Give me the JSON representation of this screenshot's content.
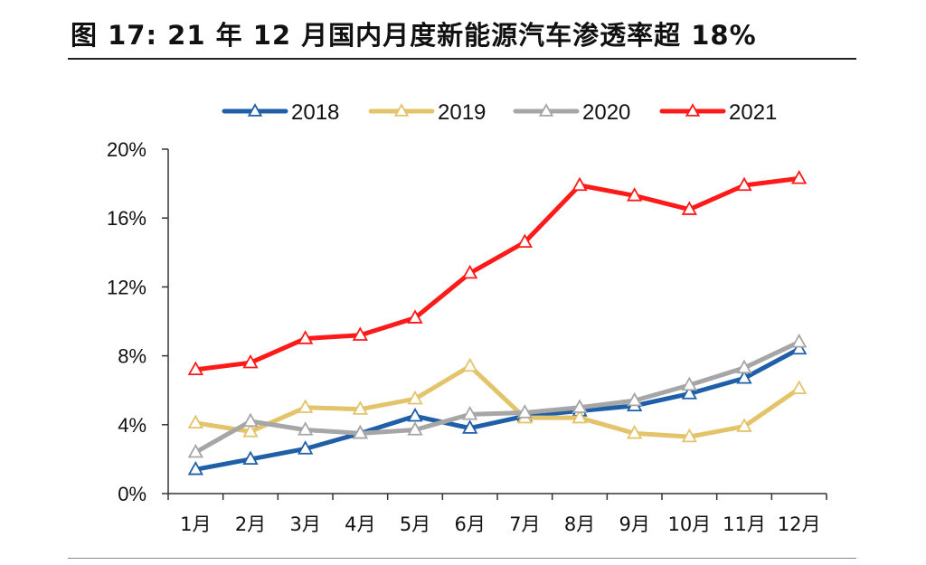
{
  "figure": {
    "title": "图 17: 21 年 12 月国内月度新能源汽车渗透率超 18%"
  },
  "chart_data": {
    "type": "line",
    "title": "图 17: 21 年 12 月国内月度新能源汽车渗透率超 18%",
    "xlabel": "",
    "ylabel": "",
    "categories": [
      "1月",
      "2月",
      "3月",
      "4月",
      "5月",
      "6月",
      "7月",
      "8月",
      "9月",
      "10月",
      "11月",
      "12月"
    ],
    "ylim": [
      0,
      20
    ],
    "yticks": [
      0,
      4,
      8,
      12,
      16,
      20
    ],
    "ytick_labels": [
      "0%",
      "4%",
      "8%",
      "12%",
      "16%",
      "20%"
    ],
    "grid": false,
    "legend_position": "top",
    "marker": "triangle",
    "series": [
      {
        "name": "2018",
        "color": "#1f5fa8",
        "values": [
          1.4,
          2.0,
          2.6,
          3.5,
          4.5,
          3.8,
          4.5,
          4.8,
          5.1,
          5.8,
          6.7,
          8.4
        ]
      },
      {
        "name": "2019",
        "color": "#e3c46a",
        "values": [
          4.1,
          3.6,
          5.0,
          4.9,
          5.5,
          7.4,
          4.4,
          4.4,
          3.5,
          3.3,
          3.9,
          6.1
        ]
      },
      {
        "name": "2020",
        "color": "#a6a6a6",
        "values": [
          2.4,
          4.2,
          3.7,
          3.5,
          3.7,
          4.6,
          4.7,
          5.0,
          5.4,
          6.3,
          7.3,
          8.8
        ]
      },
      {
        "name": "2021",
        "color": "#ff1a1a",
        "values": [
          7.2,
          7.6,
          9.0,
          9.2,
          10.2,
          12.8,
          14.6,
          17.9,
          17.3,
          16.5,
          17.9,
          18.3
        ]
      }
    ]
  }
}
